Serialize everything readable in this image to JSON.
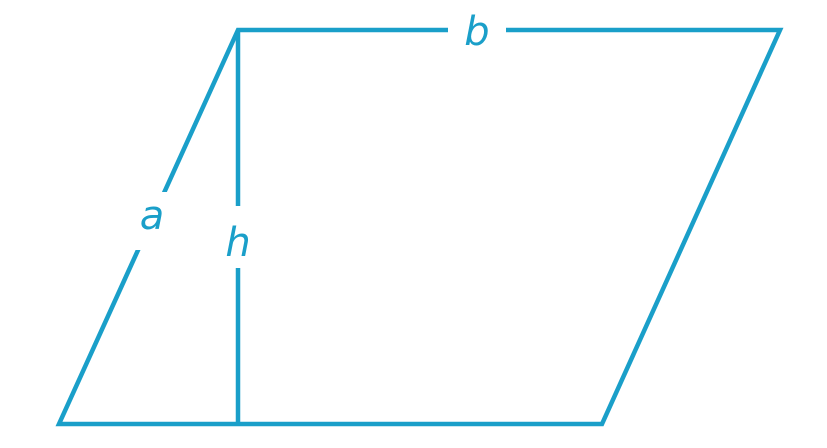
{
  "colors": {
    "stroke": "#1a9fc9",
    "label": "#1a9fc9",
    "background": "#ffffff"
  },
  "labels": {
    "side_a": "a",
    "base_b": "b",
    "height_h": "h"
  }
}
